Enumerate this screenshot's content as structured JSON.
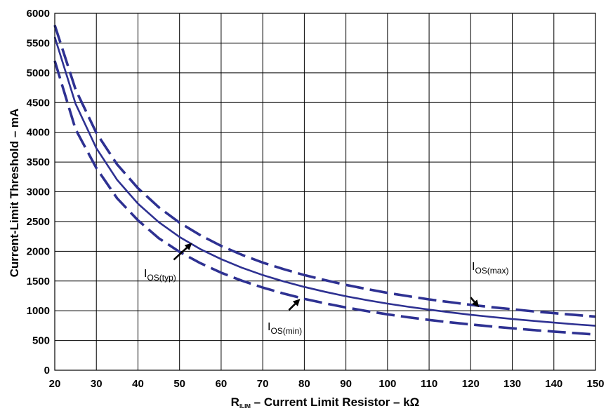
{
  "chart_data": {
    "type": "line",
    "title": "",
    "xlabel": {
      "main": "R",
      "sub": "ILIM",
      "rest": " – Current Limit Resistor – kΩ"
    },
    "ylabel": "Current-Limit Threshold – mA",
    "xlim": [
      20,
      150
    ],
    "ylim": [
      0,
      6000
    ],
    "x_ticks": [
      "20",
      "30",
      "40",
      "50",
      "60",
      "70",
      "80",
      "90",
      "100",
      "110",
      "120",
      "130",
      "140",
      "150"
    ],
    "y_ticks": [
      "0",
      "500",
      "1000",
      "1500",
      "2000",
      "2500",
      "3000",
      "3500",
      "4000",
      "4500",
      "5000",
      "5500",
      "6000"
    ],
    "grid": true,
    "colors": {
      "curve": "#2e3192",
      "grid": "#000000",
      "arrow": "#000000"
    },
    "series": [
      {
        "name": "IOS(typ)",
        "style": "solid",
        "x": [
          20,
          25,
          30,
          35,
          40,
          45,
          50,
          55,
          60,
          65,
          70,
          75,
          80,
          85,
          90,
          95,
          100,
          105,
          110,
          115,
          120,
          125,
          130,
          135,
          140,
          145,
          150
        ],
        "y": [
          5600,
          4480,
          3733,
          3200,
          2800,
          2489,
          2240,
          2036,
          1867,
          1723,
          1600,
          1493,
          1400,
          1318,
          1244,
          1179,
          1120,
          1067,
          1018,
          974,
          933,
          896,
          862,
          830,
          800,
          772,
          747
        ]
      },
      {
        "name": "IOS(max)",
        "style": "dashed",
        "x": [
          20,
          25,
          30,
          35,
          40,
          45,
          50,
          55,
          60,
          65,
          70,
          75,
          80,
          85,
          90,
          95,
          100,
          105,
          110,
          115,
          120,
          125,
          130,
          135,
          140,
          145,
          150
        ],
        "y": [
          5800,
          4720,
          3990,
          3460,
          3060,
          2740,
          2480,
          2270,
          2090,
          1940,
          1810,
          1700,
          1600,
          1515,
          1435,
          1365,
          1300,
          1245,
          1190,
          1145,
          1100,
          1060,
          1025,
          990,
          960,
          930,
          900
        ]
      },
      {
        "name": "IOS(min)",
        "style": "dashed",
        "x": [
          20,
          25,
          30,
          35,
          40,
          45,
          50,
          55,
          60,
          65,
          70,
          75,
          80,
          85,
          90,
          95,
          100,
          105,
          110,
          115,
          120,
          125,
          130,
          135,
          140,
          145,
          150
        ],
        "y": [
          5200,
          4050,
          3400,
          2890,
          2520,
          2220,
          1990,
          1800,
          1640,
          1505,
          1390,
          1290,
          1200,
          1125,
          1055,
          995,
          940,
          890,
          845,
          805,
          770,
          735,
          705,
          675,
          650,
          625,
          600
        ]
      }
    ],
    "annotations": [
      {
        "label": "I",
        "sub": "OS(typ)",
        "target_x": 53,
        "target_y": 2140
      },
      {
        "label": "I",
        "sub": "OS(min)",
        "target_x": 79,
        "target_y": 1200
      },
      {
        "label": "I",
        "sub": "OS(max)",
        "target_x": 122,
        "target_y": 1060
      }
    ]
  }
}
